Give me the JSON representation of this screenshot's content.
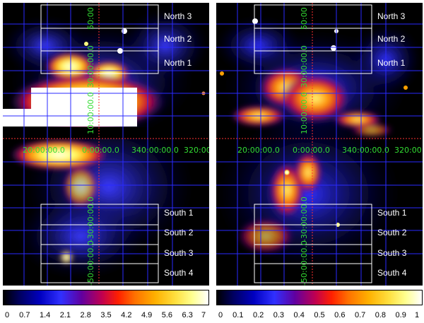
{
  "panels": [
    {
      "id": "left",
      "regions_north": [
        "North 3",
        "North 2",
        "North 1"
      ],
      "regions_south": [
        "South 1",
        "South 2",
        "South 3",
        "South 4"
      ],
      "lon_labels": [
        "20:00:00.0",
        "0:00:00.0",
        "340:00:00.0",
        "320:00"
      ],
      "lat_labels": [
        "50:00",
        "30:00:00.0",
        "10:00:00.0",
        "-30:00:00.0",
        "-50:00:00.0"
      ],
      "colorbar_ticks": [
        "0",
        "0.7",
        "1.4",
        "2.1",
        "2.8",
        "3.5",
        "4.2",
        "4.9",
        "5.6",
        "6.3",
        "7"
      ]
    },
    {
      "id": "right",
      "regions_north": [
        "North 3",
        "North 2",
        "North 1"
      ],
      "regions_south": [
        "South 1",
        "South 2",
        "South 3",
        "South 4"
      ],
      "lon_labels": [
        "20:00:00.0",
        "0:00:00.0",
        "340:00:00.0",
        "320:00"
      ],
      "lat_labels": [
        "50:00",
        "30:00:00.0",
        "10:00:00.0",
        "-30:00:00.0",
        "-50:00:00.0"
      ],
      "colorbar_ticks": [
        "0",
        "0.1",
        "0.2",
        "0.3",
        "0.4",
        "0.5",
        "0.6",
        "0.7",
        "0.8",
        "0.9",
        "1"
      ]
    }
  ],
  "colors": {
    "grid": "#2a2aff",
    "axis": "#ff3030",
    "coord_text": "#33dd33",
    "box": "#ffffff"
  }
}
